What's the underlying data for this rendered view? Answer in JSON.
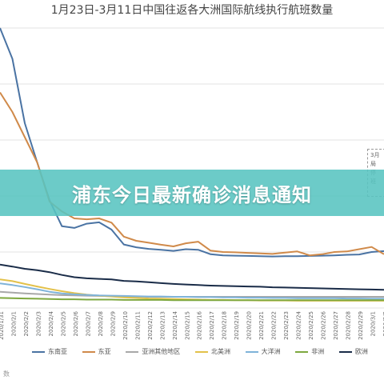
{
  "banner": {
    "text": "浦东今日最新确诊消息通知"
  },
  "footnote": "数",
  "annotation": {
    "lines": [
      "3月",
      "局",
      "停",
      "班"
    ]
  },
  "chart_data": {
    "type": "line",
    "title": "1月23日-3月11日中国往返各大洲国际航线执行航班数量",
    "xlabel": "",
    "ylabel": "",
    "grid": true,
    "legend": "bottom",
    "categories": [
      "2020/1/31",
      "2020/2/1",
      "2020/2/2",
      "2020/2/3",
      "2020/2/4",
      "2020/2/5",
      "2020/2/6",
      "2020/2/7",
      "2020/2/8",
      "2020/2/9",
      "2020/2/10",
      "2020/2/11",
      "2020/2/12",
      "2020/2/13",
      "2020/2/14",
      "2020/2/15",
      "2020/2/16",
      "2020/2/17",
      "2020/2/18",
      "2020/2/19",
      "2020/2/20",
      "2020/2/21",
      "2020/2/22",
      "2020/2/23",
      "2020/2/24",
      "2020/2/25",
      "2020/2/26",
      "2020/2/27",
      "2020/2/28",
      "2020/2/29",
      "2020/3/1",
      "2020/3/2"
    ],
    "series": [
      {
        "name": "东南亚",
        "color": "#4a73a3",
        "values": [
          1000,
          890,
          660,
          520,
          385,
          292,
          286,
          301,
          306,
          280,
          227,
          217,
          211,
          208,
          204,
          210,
          208,
          192,
          188,
          187,
          186,
          185,
          184,
          185,
          185,
          186,
          187,
          188,
          190,
          191,
          200,
          203
        ]
      },
      {
        "name": "东亚",
        "color": "#d08a4a",
        "values": [
          770,
          700,
          610,
          520,
          380,
          345,
          320,
          317,
          320,
          305,
          255,
          240,
          233,
          226,
          220,
          231,
          237,
          205,
          200,
          199,
          197,
          195,
          193,
          198,
          202,
          188,
          192,
          200,
          202,
          210,
          218,
          192
        ]
      },
      {
        "name": "亚洲其他地区",
        "color": "#a8a8a8",
        "values": [
          58,
          55,
          52,
          50,
          48,
          46,
          45,
          44,
          43,
          42,
          41,
          41,
          40,
          40,
          40,
          40,
          40,
          40,
          40,
          40,
          40,
          40,
          40,
          40,
          40,
          40,
          40,
          40,
          40,
          40,
          40,
          40
        ]
      },
      {
        "name": "北美洲",
        "color": "#e3c14a",
        "values": [
          102,
          96,
          86,
          77,
          68,
          60,
          53,
          48,
          44,
          41,
          38,
          36,
          34,
          33,
          32,
          31,
          30,
          29,
          29,
          28,
          28,
          27,
          27,
          27,
          26,
          26,
          26,
          26,
          26,
          26,
          26,
          26
        ]
      },
      {
        "name": "大洋洲",
        "color": "#7fb3d9",
        "values": [
          88,
          82,
          75,
          67,
          58,
          52,
          49,
          47,
          45,
          44,
          43,
          42,
          41,
          41,
          40,
          40,
          39,
          39,
          38,
          38,
          37,
          37,
          36,
          36,
          35,
          35,
          35,
          35,
          34,
          34,
          33,
          33
        ]
      },
      {
        "name": "非洲",
        "color": "#7ea83f",
        "values": [
          36,
          35,
          34,
          33,
          32,
          31,
          31,
          30,
          30,
          30,
          29,
          29,
          29,
          29,
          28,
          28,
          28,
          28,
          28,
          28,
          28,
          28,
          28,
          28,
          28,
          28,
          28,
          28,
          28,
          28,
          28,
          28
        ]
      },
      {
        "name": "欧洲",
        "color": "#1a2c48",
        "values": [
          155,
          148,
          140,
          135,
          128,
          118,
          110,
          106,
          104,
          102,
          97,
          95,
          92,
          89,
          86,
          84,
          82,
          80,
          79,
          78,
          77,
          76,
          74,
          73,
          72,
          71,
          70,
          69,
          68,
          67,
          66,
          65
        ]
      }
    ]
  }
}
